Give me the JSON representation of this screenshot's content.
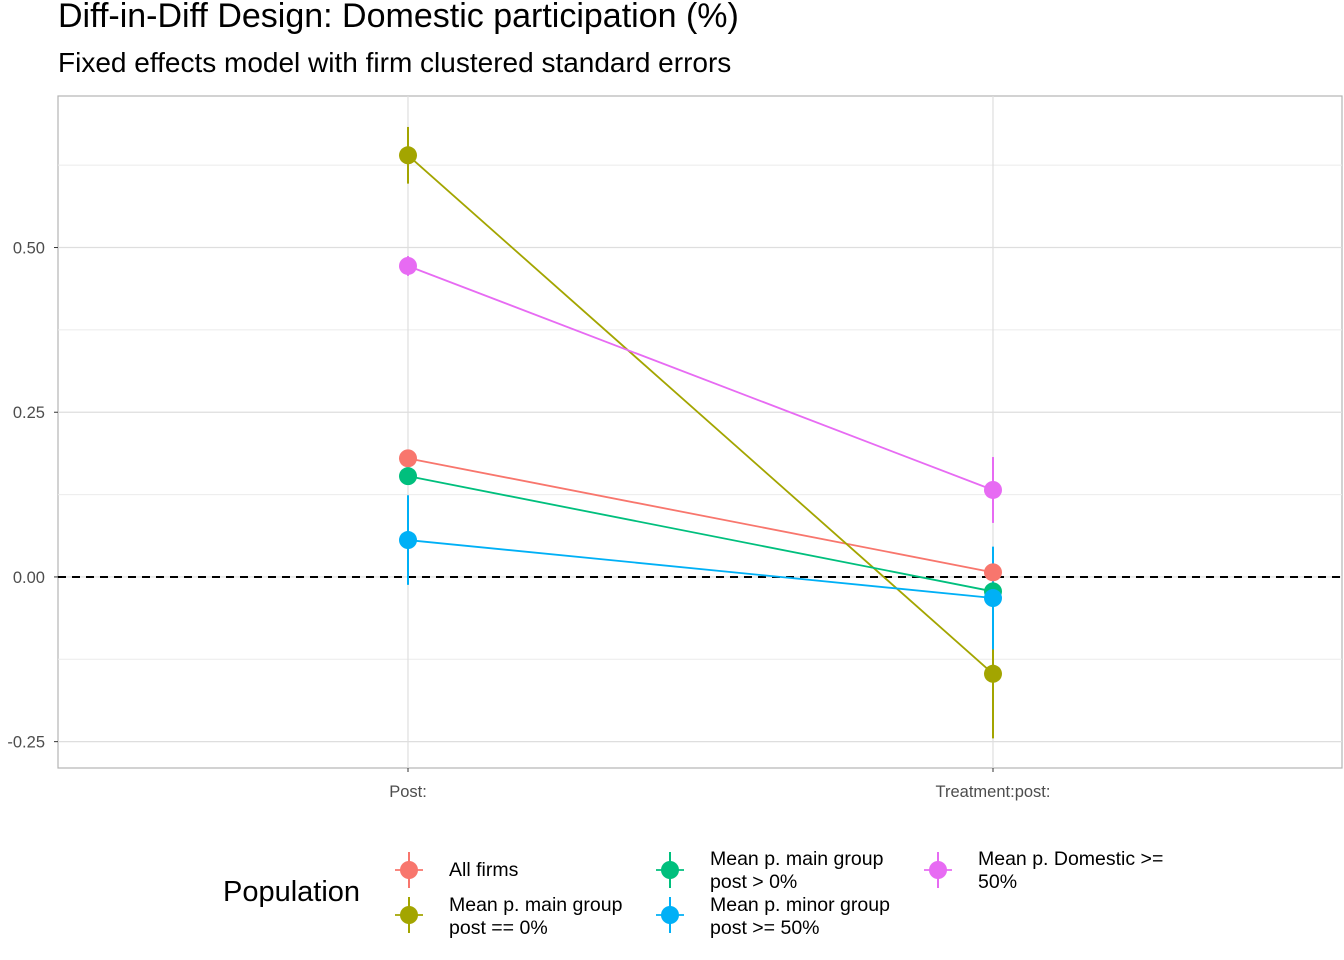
{
  "chart_data": {
    "type": "scatter",
    "title": "Diff-in-Diff Design: Domestic participation (%)",
    "subtitle": "Fixed effects model with firm clustered standard errors",
    "categories": [
      "Post:",
      "Treatment:post:"
    ],
    "ylim": [
      -0.29,
      0.73
    ],
    "yticks": [
      {
        "value": -0.25,
        "label": "-0.25"
      },
      {
        "value": 0.0,
        "label": "0.00"
      },
      {
        "value": 0.25,
        "label": "0.25"
      },
      {
        "value": 0.5,
        "label": "0.50"
      }
    ],
    "minor_grid": [
      -0.125,
      0.125,
      0.375,
      0.625
    ],
    "reference_line": 0,
    "grid": true,
    "legend": {
      "title": "Population",
      "position": "bottom"
    },
    "series": [
      {
        "name": "All firms",
        "color": "#F8766D",
        "values": [
          0.18,
          0.007
        ],
        "lower": [
          0.17,
          -0.005
        ],
        "upper": [
          0.19,
          0.019
        ]
      },
      {
        "name": "Mean p. main group post == 0%",
        "color": "#A3A500",
        "values": [
          0.64,
          -0.147
        ],
        "lower": [
          0.597,
          -0.245
        ],
        "upper": [
          0.683,
          -0.049
        ]
      },
      {
        "name": "Mean p. main group post > 0%",
        "color": "#00BF7D",
        "values": [
          0.153,
          -0.022
        ],
        "lower": [
          0.143,
          -0.033
        ],
        "upper": [
          0.163,
          -0.011
        ]
      },
      {
        "name": "Mean p. minor group post >= 50%",
        "color": "#00B0F6",
        "values": [
          0.056,
          -0.032
        ],
        "lower": [
          -0.012,
          -0.11
        ],
        "upper": [
          0.124,
          0.046
        ]
      },
      {
        "name": "Mean p. Domestic >= 50%",
        "color": "#E76BF3",
        "values": [
          0.472,
          0.132
        ],
        "lower": [
          0.457,
          0.082
        ],
        "upper": [
          0.487,
          0.182
        ]
      }
    ]
  },
  "legend_labels": [
    {
      "line1": "All firms",
      "line2": ""
    },
    {
      "line1": "Mean p. main group",
      "line2": "post == 0%"
    },
    {
      "line1": "Mean p. main group",
      "line2": "post > 0%"
    },
    {
      "line1": "Mean p. minor group",
      "line2": "post >= 50%"
    },
    {
      "line1": "Mean p. Domestic >=",
      "line2": "50%"
    }
  ]
}
